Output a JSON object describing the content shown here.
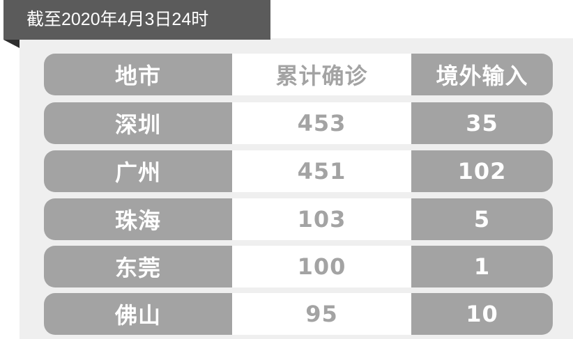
{
  "title": "截至2020年4月3日24时",
  "table": {
    "headers": [
      "地市",
      "累计确诊",
      "境外输入"
    ],
    "rows": [
      [
        "深圳",
        "453",
        "35"
      ],
      [
        "广州",
        "451",
        "102"
      ],
      [
        "珠海",
        "103",
        "5"
      ],
      [
        "东莞",
        "100",
        "1"
      ],
      [
        "佛山",
        "95",
        "10"
      ]
    ]
  },
  "colors": {
    "banner": "#5b5b5b",
    "cell_gray": "#a3a3a3",
    "panel": "#efefef"
  }
}
